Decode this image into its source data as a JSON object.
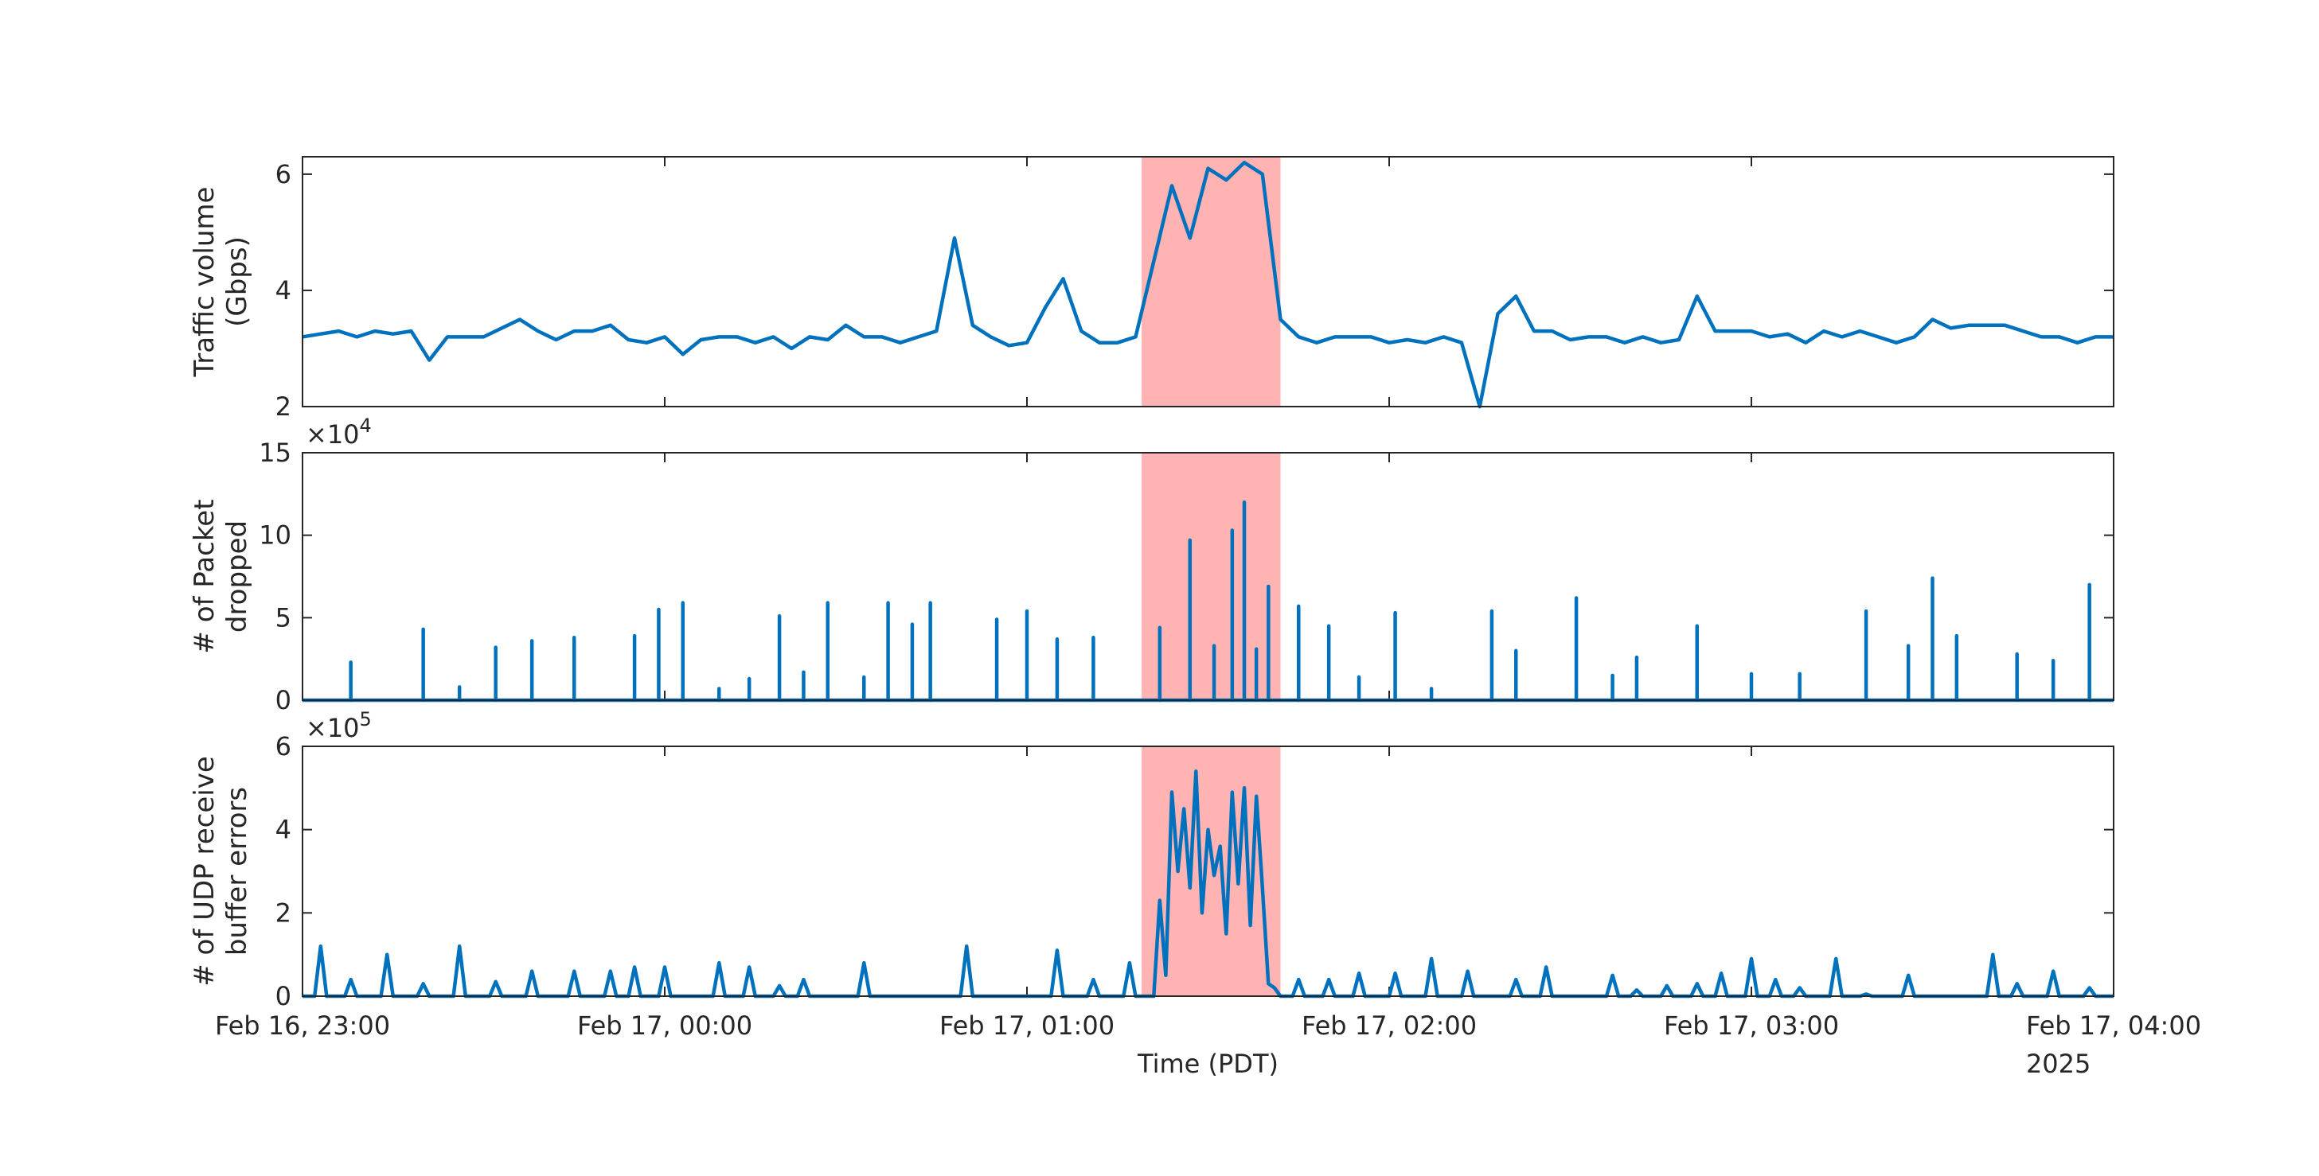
{
  "chart_data": [
    {
      "type": "line",
      "ylabel": [
        "Traffic volume",
        "(Gbps)"
      ],
      "xlim": [
        "2025-02-16T23:00",
        "2025-02-17T04:00"
      ],
      "ylim": [
        2,
        6.3
      ],
      "yticks": [
        2,
        4,
        6
      ],
      "highlight": {
        "x": [
          "2025-02-17T01:19",
          "2025-02-17T01:42"
        ],
        "color": "#ffb3b3"
      },
      "series": [
        {
          "color": "#0072bd",
          "x": [
            "2025-02-16T23:00",
            "2025-02-16T23:03",
            "2025-02-16T23:06",
            "2025-02-16T23:09",
            "2025-02-16T23:12",
            "2025-02-16T23:15",
            "2025-02-16T23:18",
            "2025-02-16T23:21",
            "2025-02-16T23:24",
            "2025-02-16T23:27",
            "2025-02-16T23:30",
            "2025-02-16T23:33",
            "2025-02-16T23:36",
            "2025-02-16T23:39",
            "2025-02-16T23:42",
            "2025-02-16T23:45",
            "2025-02-16T23:48",
            "2025-02-16T23:51",
            "2025-02-16T23:54",
            "2025-02-16T23:57",
            "2025-02-17T00:00",
            "2025-02-17T00:03",
            "2025-02-17T00:06",
            "2025-02-17T00:09",
            "2025-02-17T00:12",
            "2025-02-17T00:15",
            "2025-02-17T00:18",
            "2025-02-17T00:21",
            "2025-02-17T00:24",
            "2025-02-17T00:27",
            "2025-02-17T00:30",
            "2025-02-17T00:33",
            "2025-02-17T00:36",
            "2025-02-17T00:39",
            "2025-02-17T00:42",
            "2025-02-17T00:45",
            "2025-02-17T00:48",
            "2025-02-17T00:51",
            "2025-02-17T00:54",
            "2025-02-17T00:57",
            "2025-02-17T01:00",
            "2025-02-17T01:03",
            "2025-02-17T01:06",
            "2025-02-17T01:09",
            "2025-02-17T01:12",
            "2025-02-17T01:15",
            "2025-02-17T01:18",
            "2025-02-17T01:21",
            "2025-02-17T01:24",
            "2025-02-17T01:27",
            "2025-02-17T01:30",
            "2025-02-17T01:33",
            "2025-02-17T01:36",
            "2025-02-17T01:39",
            "2025-02-17T01:42",
            "2025-02-17T01:45",
            "2025-02-17T01:48",
            "2025-02-17T01:51",
            "2025-02-17T01:54",
            "2025-02-17T01:57",
            "2025-02-17T02:00",
            "2025-02-17T02:03",
            "2025-02-17T02:06",
            "2025-02-17T02:09",
            "2025-02-17T02:12",
            "2025-02-17T02:15",
            "2025-02-17T02:18",
            "2025-02-17T02:21",
            "2025-02-17T02:24",
            "2025-02-17T02:27",
            "2025-02-17T02:30",
            "2025-02-17T02:33",
            "2025-02-17T02:36",
            "2025-02-17T02:39",
            "2025-02-17T02:42",
            "2025-02-17T02:45",
            "2025-02-17T02:48",
            "2025-02-17T02:51",
            "2025-02-17T02:54",
            "2025-02-17T02:57",
            "2025-02-17T03:00",
            "2025-02-17T03:03",
            "2025-02-17T03:06",
            "2025-02-17T03:09",
            "2025-02-17T03:12",
            "2025-02-17T03:15",
            "2025-02-17T03:18",
            "2025-02-17T03:21",
            "2025-02-17T03:24",
            "2025-02-17T03:27",
            "2025-02-17T03:30",
            "2025-02-17T03:33",
            "2025-02-17T03:36",
            "2025-02-17T03:39",
            "2025-02-17T03:42",
            "2025-02-17T03:45",
            "2025-02-17T03:48",
            "2025-02-17T03:51",
            "2025-02-17T03:54",
            "2025-02-17T03:57",
            "2025-02-17T04:00"
          ],
          "values": [
            3.2,
            3.25,
            3.3,
            3.2,
            3.3,
            3.25,
            3.3,
            2.8,
            3.2,
            3.2,
            3.2,
            3.35,
            3.5,
            3.3,
            3.15,
            3.3,
            3.3,
            3.4,
            3.15,
            3.1,
            3.2,
            2.9,
            3.15,
            3.2,
            3.2,
            3.1,
            3.2,
            3.0,
            3.2,
            3.15,
            3.4,
            3.2,
            3.2,
            3.1,
            3.2,
            3.3,
            4.9,
            3.4,
            3.2,
            3.05,
            3.1,
            3.7,
            4.2,
            3.3,
            3.1,
            3.1,
            3.2,
            4.5,
            5.8,
            4.9,
            6.1,
            5.9,
            6.2,
            6.0,
            3.5,
            3.2,
            3.1,
            3.2,
            3.2,
            3.2,
            3.1,
            3.15,
            3.1,
            3.2,
            3.1,
            2.0,
            3.6,
            3.9,
            3.3,
            3.3,
            3.15,
            3.2,
            3.2,
            3.1,
            3.2,
            3.1,
            3.15,
            3.9,
            3.3,
            3.3,
            3.3,
            3.2,
            3.25,
            3.1,
            3.3,
            3.2,
            3.3,
            3.2,
            3.1,
            3.2,
            3.5,
            3.35,
            3.4,
            3.4,
            3.4,
            3.3,
            3.2,
            3.2,
            3.1,
            3.2,
            3.2
          ]
        }
      ]
    },
    {
      "type": "stem",
      "ylabel": [
        "# of Packet",
        "dropped"
      ],
      "y_multiplier": {
        "base": "×10",
        "exponent": "4"
      },
      "xlim": [
        "2025-02-16T23:00",
        "2025-02-17T04:00"
      ],
      "ylim": [
        0,
        15
      ],
      "yticks": [
        0,
        5,
        10,
        15
      ],
      "highlight": {
        "x": [
          "2025-02-17T01:19",
          "2025-02-17T01:42"
        ],
        "color": "#ffb3b3"
      },
      "series": [
        {
          "color": "#0072bd",
          "x": [
            "2025-02-16T23:08",
            "2025-02-16T23:20",
            "2025-02-16T23:26",
            "2025-02-16T23:32",
            "2025-02-16T23:38",
            "2025-02-16T23:45",
            "2025-02-16T23:55",
            "2025-02-16T23:59",
            "2025-02-17T00:03",
            "2025-02-17T00:09",
            "2025-02-17T00:14",
            "2025-02-17T00:19",
            "2025-02-17T00:23",
            "2025-02-17T00:27",
            "2025-02-17T00:33",
            "2025-02-17T00:37",
            "2025-02-17T00:41",
            "2025-02-17T00:44",
            "2025-02-17T00:55",
            "2025-02-17T01:00",
            "2025-02-17T01:05",
            "2025-02-17T01:11",
            "2025-02-17T01:22",
            "2025-02-17T01:27",
            "2025-02-17T01:31",
            "2025-02-17T01:34",
            "2025-02-17T01:36",
            "2025-02-17T01:38",
            "2025-02-17T01:40",
            "2025-02-17T01:45",
            "2025-02-17T01:50",
            "2025-02-17T01:55",
            "2025-02-17T02:01",
            "2025-02-17T02:07",
            "2025-02-17T02:17",
            "2025-02-17T02:21",
            "2025-02-17T02:31",
            "2025-02-17T02:37",
            "2025-02-17T02:41",
            "2025-02-17T02:51",
            "2025-02-17T03:00",
            "2025-02-17T03:08",
            "2025-02-17T03:19",
            "2025-02-17T03:26",
            "2025-02-17T03:30",
            "2025-02-17T03:34",
            "2025-02-17T03:44",
            "2025-02-17T03:50",
            "2025-02-17T03:56"
          ],
          "values": [
            2.3,
            4.3,
            0.8,
            3.2,
            3.6,
            3.8,
            3.9,
            5.5,
            5.9,
            0.7,
            1.3,
            5.1,
            1.7,
            5.9,
            1.4,
            5.9,
            4.6,
            5.9,
            4.9,
            5.4,
            3.7,
            3.8,
            4.4,
            9.7,
            3.3,
            10.3,
            12.0,
            3.1,
            6.9,
            5.7,
            4.5,
            1.4,
            5.3,
            0.7,
            5.4,
            3.0,
            6.2,
            1.5,
            2.6,
            4.5,
            1.6,
            1.6,
            5.4,
            3.3,
            7.4,
            3.9,
            2.8,
            2.4,
            7.0
          ]
        }
      ]
    },
    {
      "type": "line",
      "ylabel": [
        "# of UDP receive",
        "buffer errors"
      ],
      "y_multiplier": {
        "base": "×10",
        "exponent": "5"
      },
      "xlabel": "Time (PDT)",
      "x_year_label": "2025",
      "xlim": [
        "2025-02-16T23:00",
        "2025-02-17T04:00"
      ],
      "xticks": [
        {
          "value": "2025-02-16T23:00",
          "label": "Feb 16, 23:00"
        },
        {
          "value": "2025-02-17T00:00",
          "label": "Feb 17, 00:00"
        },
        {
          "value": "2025-02-17T01:00",
          "label": "Feb 17, 01:00"
        },
        {
          "value": "2025-02-17T02:00",
          "label": "Feb 17, 02:00"
        },
        {
          "value": "2025-02-17T03:00",
          "label": "Feb 17, 03:00"
        },
        {
          "value": "2025-02-17T04:00",
          "label": "Feb 17, 04:00"
        }
      ],
      "ylim": [
        0,
        6
      ],
      "yticks": [
        0,
        2,
        4,
        6
      ],
      "highlight": {
        "x": [
          "2025-02-17T01:19",
          "2025-02-17T01:42"
        ],
        "color": "#ffb3b3"
      },
      "series": [
        {
          "color": "#0072bd",
          "x": [
            "2025-02-16T23:00",
            "2025-02-16T23:02",
            "2025-02-16T23:03",
            "2025-02-16T23:04",
            "2025-02-16T23:07",
            "2025-02-16T23:08",
            "2025-02-16T23:09",
            "2025-02-16T23:13",
            "2025-02-16T23:14",
            "2025-02-16T23:15",
            "2025-02-16T23:19",
            "2025-02-16T23:20",
            "2025-02-16T23:21",
            "2025-02-16T23:25",
            "2025-02-16T23:26",
            "2025-02-16T23:27",
            "2025-02-16T23:31",
            "2025-02-16T23:32",
            "2025-02-16T23:33",
            "2025-02-16T23:37",
            "2025-02-16T23:38",
            "2025-02-16T23:39",
            "2025-02-16T23:44",
            "2025-02-16T23:45",
            "2025-02-16T23:46",
            "2025-02-16T23:50",
            "2025-02-16T23:51",
            "2025-02-16T23:52",
            "2025-02-16T23:54",
            "2025-02-16T23:55",
            "2025-02-16T23:56",
            "2025-02-16T23:59",
            "2025-02-17T00:00",
            "2025-02-17T00:01",
            "2025-02-17T00:08",
            "2025-02-17T00:09",
            "2025-02-17T00:10",
            "2025-02-17T00:13",
            "2025-02-17T00:14",
            "2025-02-17T00:15",
            "2025-02-17T00:18",
            "2025-02-17T00:19",
            "2025-02-17T00:20",
            "2025-02-17T00:22",
            "2025-02-17T00:23",
            "2025-02-17T00:24",
            "2025-02-17T00:32",
            "2025-02-17T00:33",
            "2025-02-17T00:34",
            "2025-02-17T00:49",
            "2025-02-17T00:50",
            "2025-02-17T00:51",
            "2025-02-17T01:04",
            "2025-02-17T01:05",
            "2025-02-17T01:06",
            "2025-02-17T01:10",
            "2025-02-17T01:11",
            "2025-02-17T01:12",
            "2025-02-17T01:16",
            "2025-02-17T01:17",
            "2025-02-17T01:18",
            "2025-02-17T01:21",
            "2025-02-17T01:22",
            "2025-02-17T01:23",
            "2025-02-17T01:24",
            "2025-02-17T01:25",
            "2025-02-17T01:26",
            "2025-02-17T01:27",
            "2025-02-17T01:28",
            "2025-02-17T01:29",
            "2025-02-17T01:30",
            "2025-02-17T01:31",
            "2025-02-17T01:32",
            "2025-02-17T01:33",
            "2025-02-17T01:34",
            "2025-02-17T01:35",
            "2025-02-17T01:36",
            "2025-02-17T01:37",
            "2025-02-17T01:38",
            "2025-02-17T01:39",
            "2025-02-17T01:40",
            "2025-02-17T01:41",
            "2025-02-17T01:42",
            "2025-02-17T01:44",
            "2025-02-17T01:45",
            "2025-02-17T01:46",
            "2025-02-17T01:49",
            "2025-02-17T01:50",
            "2025-02-17T01:51",
            "2025-02-17T01:54",
            "2025-02-17T01:55",
            "2025-02-17T01:56",
            "2025-02-17T02:00",
            "2025-02-17T02:01",
            "2025-02-17T02:02",
            "2025-02-17T02:06",
            "2025-02-17T02:07",
            "2025-02-17T02:08",
            "2025-02-17T02:12",
            "2025-02-17T02:13",
            "2025-02-17T02:14",
            "2025-02-17T02:20",
            "2025-02-17T02:21",
            "2025-02-17T02:22",
            "2025-02-17T02:25",
            "2025-02-17T02:26",
            "2025-02-17T02:27",
            "2025-02-17T02:36",
            "2025-02-17T02:37",
            "2025-02-17T02:38",
            "2025-02-17T02:40",
            "2025-02-17T02:41",
            "2025-02-17T02:42",
            "2025-02-17T02:45",
            "2025-02-17T02:46",
            "2025-02-17T02:47",
            "2025-02-17T02:50",
            "2025-02-17T02:51",
            "2025-02-17T02:52",
            "2025-02-17T02:54",
            "2025-02-17T02:55",
            "2025-02-17T02:56",
            "2025-02-17T02:59",
            "2025-02-17T03:00",
            "2025-02-17T03:01",
            "2025-02-17T03:03",
            "2025-02-17T03:04",
            "2025-02-17T03:05",
            "2025-02-17T03:07",
            "2025-02-17T03:08",
            "2025-02-17T03:09",
            "2025-02-17T03:13",
            "2025-02-17T03:14",
            "2025-02-17T03:15",
            "2025-02-17T03:18",
            "2025-02-17T03:19",
            "2025-02-17T03:20",
            "2025-02-17T03:25",
            "2025-02-17T03:26",
            "2025-02-17T03:27",
            "2025-02-17T03:39",
            "2025-02-17T03:40",
            "2025-02-17T03:41",
            "2025-02-17T03:43",
            "2025-02-17T03:44",
            "2025-02-17T03:45",
            "2025-02-17T03:49",
            "2025-02-17T03:50",
            "2025-02-17T03:51",
            "2025-02-17T03:55",
            "2025-02-17T03:56",
            "2025-02-17T03:57",
            "2025-02-17T04:00"
          ],
          "values": [
            0,
            0,
            1.2,
            0,
            0,
            0.4,
            0,
            0,
            1.0,
            0,
            0,
            0.3,
            0,
            0,
            1.2,
            0,
            0,
            0.35,
            0,
            0,
            0.6,
            0,
            0,
            0.6,
            0,
            0,
            0.6,
            0,
            0,
            0.7,
            0,
            0,
            0.7,
            0,
            0,
            0.8,
            0,
            0,
            0.7,
            0,
            0,
            0.25,
            0,
            0,
            0.4,
            0,
            0,
            0.8,
            0,
            0,
            1.2,
            0,
            0,
            1.1,
            0,
            0,
            0.4,
            0,
            0,
            0.8,
            0,
            0,
            2.3,
            0.5,
            4.9,
            3.0,
            4.5,
            2.6,
            5.4,
            2.0,
            4.0,
            2.9,
            3.6,
            1.5,
            4.9,
            2.7,
            5.0,
            1.7,
            4.8,
            2.6,
            0.3,
            0.2,
            0,
            0,
            0.4,
            0,
            0,
            0.4,
            0,
            0,
            0.55,
            0,
            0,
            0.55,
            0,
            0,
            0.9,
            0,
            0,
            0.6,
            0,
            0,
            0.4,
            0,
            0,
            0.7,
            0,
            0,
            0.5,
            0,
            0,
            0.15,
            0,
            0,
            0.25,
            0,
            0,
            0.3,
            0,
            0,
            0.55,
            0,
            0,
            0.9,
            0,
            0,
            0.4,
            0,
            0,
            0.2,
            0,
            0,
            0.9,
            0,
            0,
            0.05,
            0,
            0,
            0.5,
            0,
            0,
            1.0,
            0,
            0,
            0.3,
            0,
            0,
            0.6,
            0,
            0,
            0.2,
            0,
            0
          ]
        }
      ]
    }
  ]
}
